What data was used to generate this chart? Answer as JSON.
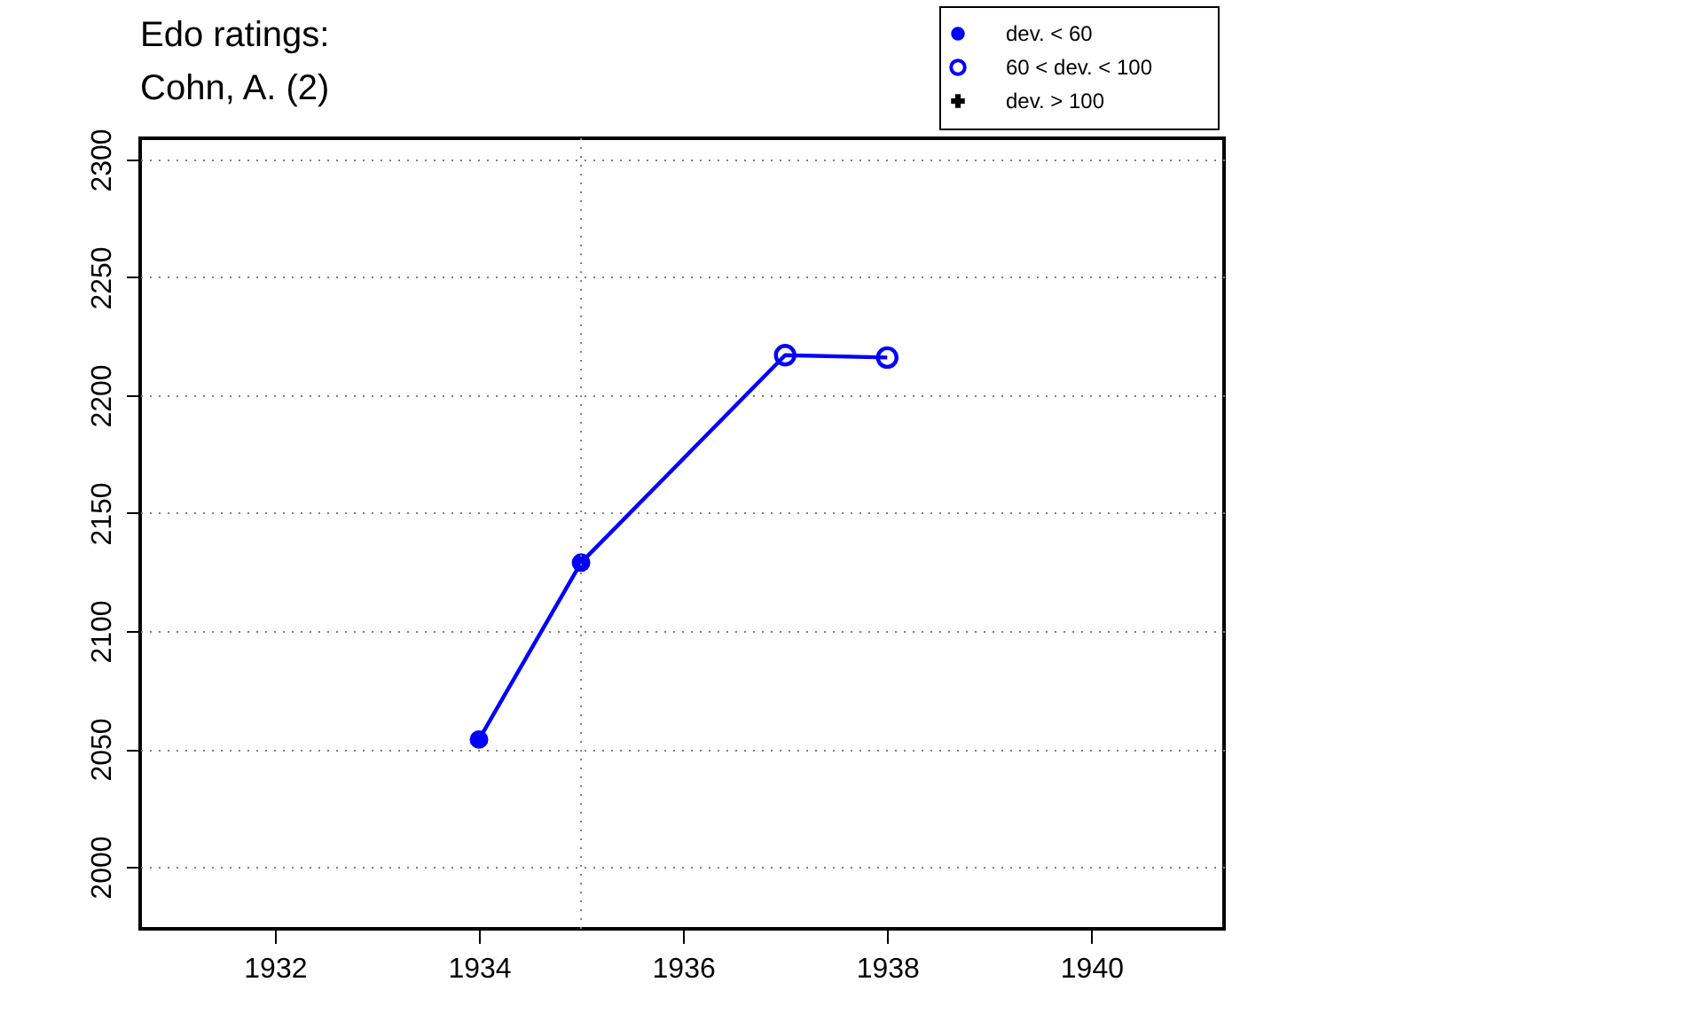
{
  "chart_data": {
    "type": "line",
    "title": "Edo ratings:\nCohn, A. (2)",
    "xlim": [
      1930.68,
      1941.3
    ],
    "xticks": [
      1932,
      1934,
      1936,
      1938,
      1940
    ],
    "ylim": [
      1973.7,
      2309
    ],
    "yticks": [
      2000,
      2050,
      2100,
      2150,
      2200,
      2250,
      2300
    ],
    "grid": "y",
    "legend": "top right",
    "line_style": "solid",
    "ref_lines": [
      {
        "axis": "x",
        "value": 1935,
        "color": "#808080",
        "line_style": "dotted"
      }
    ],
    "series": [
      {
        "type": "line",
        "color": "#0000ff",
        "marker": "none",
        "x": [
          1934,
          1935,
          1937,
          1938
        ],
        "values": [
          2054,
          2129,
          2217,
          2216
        ]
      },
      {
        "type": "scatter",
        "name": "dev. < 60",
        "color": "#0000ff",
        "marker": "circle",
        "x": [
          1934,
          1935
        ],
        "values": [
          2054,
          2129
        ]
      },
      {
        "type": "scatter",
        "name": "60 < dev. < 100",
        "color": "#0000ff",
        "marker": "circle",
        "x": [
          1937,
          1938
        ],
        "values": [
          2217,
          2216
        ]
      },
      {
        "type": "scatter",
        "name": "dev. > 100",
        "marker": "cross"
      }
    ]
  }
}
